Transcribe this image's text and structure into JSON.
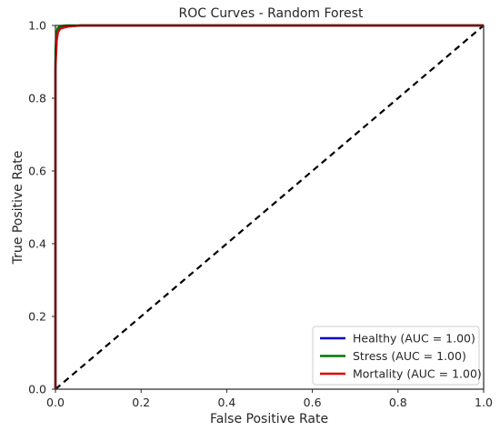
{
  "chart_data": {
    "type": "line",
    "title": "ROC Curves - Random Forest",
    "xlabel": "False Positive Rate",
    "ylabel": "True Positive Rate",
    "xlim": [
      0.0,
      1.0
    ],
    "ylim": [
      0.0,
      1.0
    ],
    "xticks": [
      "0.0",
      "0.2",
      "0.4",
      "0.6",
      "0.8",
      "1.0"
    ],
    "yticks": [
      "0.0",
      "0.2",
      "0.4",
      "0.6",
      "0.8",
      "1.0"
    ],
    "grid": false,
    "legend_position": "lower-right",
    "series": [
      {
        "name": "Healthy (AUC = 1.00)",
        "color": "#0000cc",
        "x": [
          0.0,
          0.0,
          0.003,
          0.006,
          0.012,
          0.03,
          0.06,
          1.0
        ],
        "y": [
          0.0,
          0.9,
          0.965,
          0.985,
          0.994,
          0.998,
          1.0,
          1.0
        ]
      },
      {
        "name": "Stress (AUC = 1.00)",
        "color": "#007700",
        "x": [
          0.0,
          0.0,
          0.002,
          0.005,
          0.01,
          0.025,
          1.0
        ],
        "y": [
          0.0,
          0.93,
          0.975,
          0.992,
          0.998,
          1.0,
          1.0
        ]
      },
      {
        "name": "Mortality (AUC = 1.00)",
        "color": "#dd0000",
        "x": [
          0.0,
          0.0,
          0.003,
          0.006,
          0.012,
          0.03,
          0.06,
          1.0
        ],
        "y": [
          0.0,
          0.88,
          0.96,
          0.982,
          0.992,
          0.997,
          1.0,
          1.0
        ]
      }
    ],
    "reference_line": {
      "style": "dashed",
      "color": "#000000",
      "x": [
        0.0,
        1.0
      ],
      "y": [
        0.0,
        1.0
      ]
    }
  }
}
